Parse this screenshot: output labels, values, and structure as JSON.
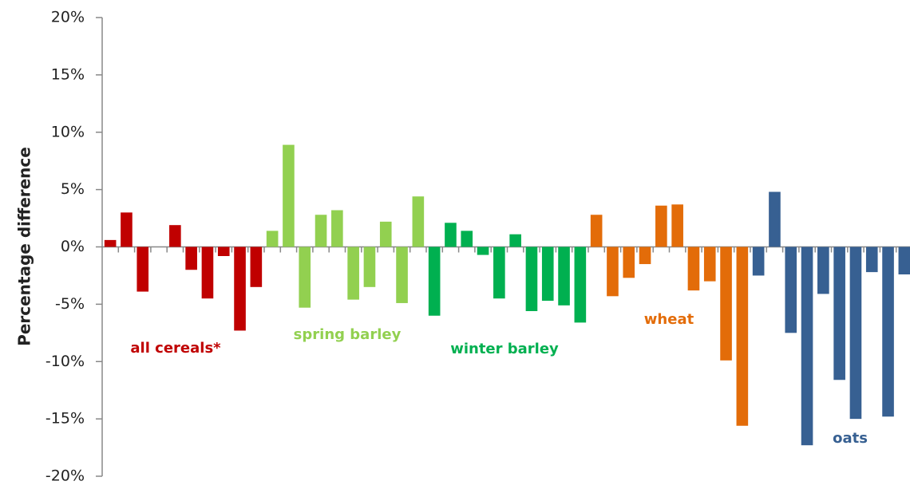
{
  "chart_data": {
    "type": "bar",
    "y_label": "Percentage difference",
    "categories": [
      null,
      null,
      null,
      null,
      null,
      null,
      null,
      null,
      null,
      null,
      null,
      null,
      null,
      null,
      null,
      null,
      null,
      null,
      null,
      null,
      null,
      null,
      null,
      null,
      null,
      null,
      null,
      null,
      null,
      null,
      null,
      null,
      null,
      null,
      null,
      null,
      null,
      null,
      null,
      null,
      null,
      null,
      null,
      null,
      null,
      null,
      null,
      null,
      null,
      null
    ],
    "series": [
      {
        "name": "all cereals*",
        "color": "#c00000",
        "values": [
          0.6,
          3.0,
          -3.9,
          null,
          1.9,
          -2.0,
          -4.5,
          -0.8,
          -7.3,
          -3.5,
          null,
          null,
          null,
          null,
          null,
          null,
          null,
          null,
          null,
          null,
          null,
          null,
          null,
          null,
          null,
          null,
          null,
          null,
          null,
          null,
          null,
          null,
          null,
          null,
          null,
          null,
          null,
          null,
          null,
          null,
          null,
          null,
          null,
          null,
          null,
          null,
          null,
          null,
          null,
          null
        ]
      },
      {
        "name": "spring barley",
        "color": "#92d050",
        "values": [
          null,
          null,
          null,
          null,
          null,
          null,
          null,
          null,
          null,
          null,
          1.4,
          8.9,
          -5.3,
          2.8,
          3.2,
          -4.6,
          -3.5,
          2.2,
          -4.9,
          4.4,
          null,
          null,
          null,
          null,
          null,
          null,
          null,
          null,
          null,
          null,
          null,
          null,
          null,
          null,
          null,
          null,
          null,
          null,
          null,
          null,
          null,
          null,
          null,
          null,
          null,
          null,
          null,
          null,
          null,
          null
        ]
      },
      {
        "name": "winter barley",
        "color": "#00b050",
        "values": [
          null,
          null,
          null,
          null,
          null,
          null,
          null,
          null,
          null,
          null,
          null,
          null,
          null,
          null,
          null,
          null,
          null,
          null,
          null,
          null,
          -6.0,
          2.1,
          1.4,
          -0.7,
          -4.5,
          1.1,
          -5.6,
          -4.7,
          -5.1,
          -6.6,
          null,
          null,
          null,
          null,
          null,
          null,
          null,
          null,
          null,
          null,
          null,
          null,
          null,
          null,
          null,
          null,
          null,
          null,
          null,
          null
        ]
      },
      {
        "name": "wheat",
        "color": "#e36c09",
        "values": [
          null,
          null,
          null,
          null,
          null,
          null,
          null,
          null,
          null,
          null,
          null,
          null,
          null,
          null,
          null,
          null,
          null,
          null,
          null,
          null,
          null,
          null,
          null,
          null,
          null,
          null,
          null,
          null,
          null,
          null,
          2.8,
          -4.3,
          -2.7,
          -1.5,
          3.6,
          3.7,
          -3.8,
          -3.0,
          -9.9,
          -15.6,
          null,
          null,
          null,
          null,
          null,
          null,
          null,
          null,
          null,
          null
        ]
      },
      {
        "name": "oats",
        "color": "#376092",
        "values": [
          null,
          null,
          null,
          null,
          null,
          null,
          null,
          null,
          null,
          null,
          null,
          null,
          null,
          null,
          null,
          null,
          null,
          null,
          null,
          null,
          null,
          null,
          null,
          null,
          null,
          null,
          null,
          null,
          null,
          null,
          null,
          null,
          null,
          null,
          null,
          null,
          null,
          null,
          null,
          null,
          -2.5,
          4.8,
          -7.5,
          -17.3,
          -4.1,
          -11.6,
          -15.0,
          -2.2,
          -14.8,
          -2.4
        ]
      }
    ],
    "ylim": [
      -20,
      20
    ],
    "yticks": [
      {
        "value": -20,
        "label": "-20%"
      },
      {
        "value": -15,
        "label": "-15%"
      },
      {
        "value": -10,
        "label": "-10%"
      },
      {
        "value": -5,
        "label": "-5%"
      },
      {
        "value": 0,
        "label": "0%"
      },
      {
        "value": 5,
        "label": "5%"
      },
      {
        "value": 10,
        "label": "10%"
      },
      {
        "value": 15,
        "label": "15%"
      },
      {
        "value": 20,
        "label": "20%"
      }
    ],
    "grid": false
  }
}
